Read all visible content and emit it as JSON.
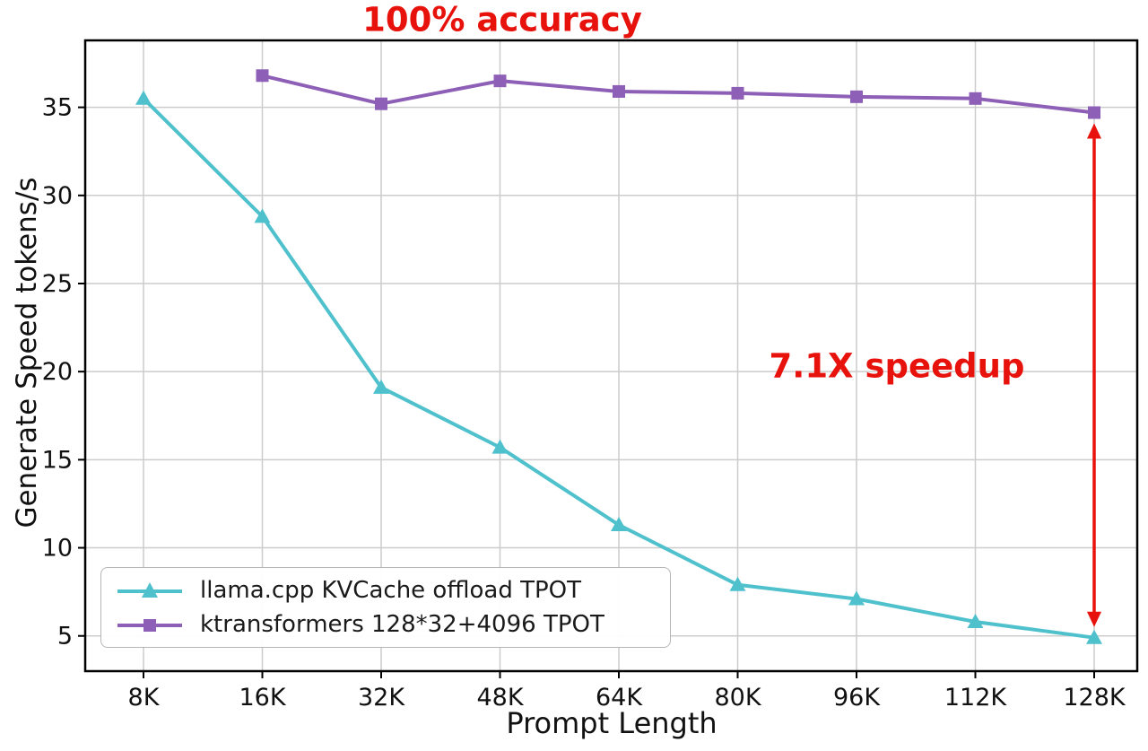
{
  "chart_data": {
    "type": "line",
    "title": "",
    "xlabel": "Prompt Length",
    "ylabel": "Generate Speed tokens/s",
    "categories": [
      "8K",
      "16K",
      "32K",
      "48K",
      "64K",
      "80K",
      "96K",
      "112K",
      "128K"
    ],
    "y_ticks": [
      5,
      10,
      15,
      20,
      25,
      30,
      35
    ],
    "ylim": [
      3,
      38.8
    ],
    "grid": true,
    "legend_position": "lower left",
    "series": [
      {
        "name": "llama.cpp KVCache offload TPOT",
        "color": "#4fc1cd",
        "marker": "triangle",
        "values": [
          35.5,
          28.8,
          19.1,
          15.7,
          11.3,
          7.9,
          7.1,
          5.8,
          4.9
        ]
      },
      {
        "name": "ktransformers 128*32+4096 TPOT",
        "color": "#8e5fb6",
        "marker": "square",
        "values": [
          null,
          36.8,
          35.2,
          36.5,
          35.9,
          35.8,
          35.6,
          35.5,
          34.7
        ]
      }
    ],
    "annotations": [
      {
        "text": "100% accuracy",
        "color": "#e8120c"
      },
      {
        "text": "7.1X speedup",
        "color": "#e8120c"
      }
    ],
    "arrow": {
      "x_category": "128K",
      "from_value": 34.7,
      "to_value": 4.9,
      "color": "#e8120c"
    }
  },
  "colors": {
    "accent_red": "#e8120c",
    "grid": "#cccccc",
    "axis": "#000000",
    "background": "#ffffff"
  }
}
